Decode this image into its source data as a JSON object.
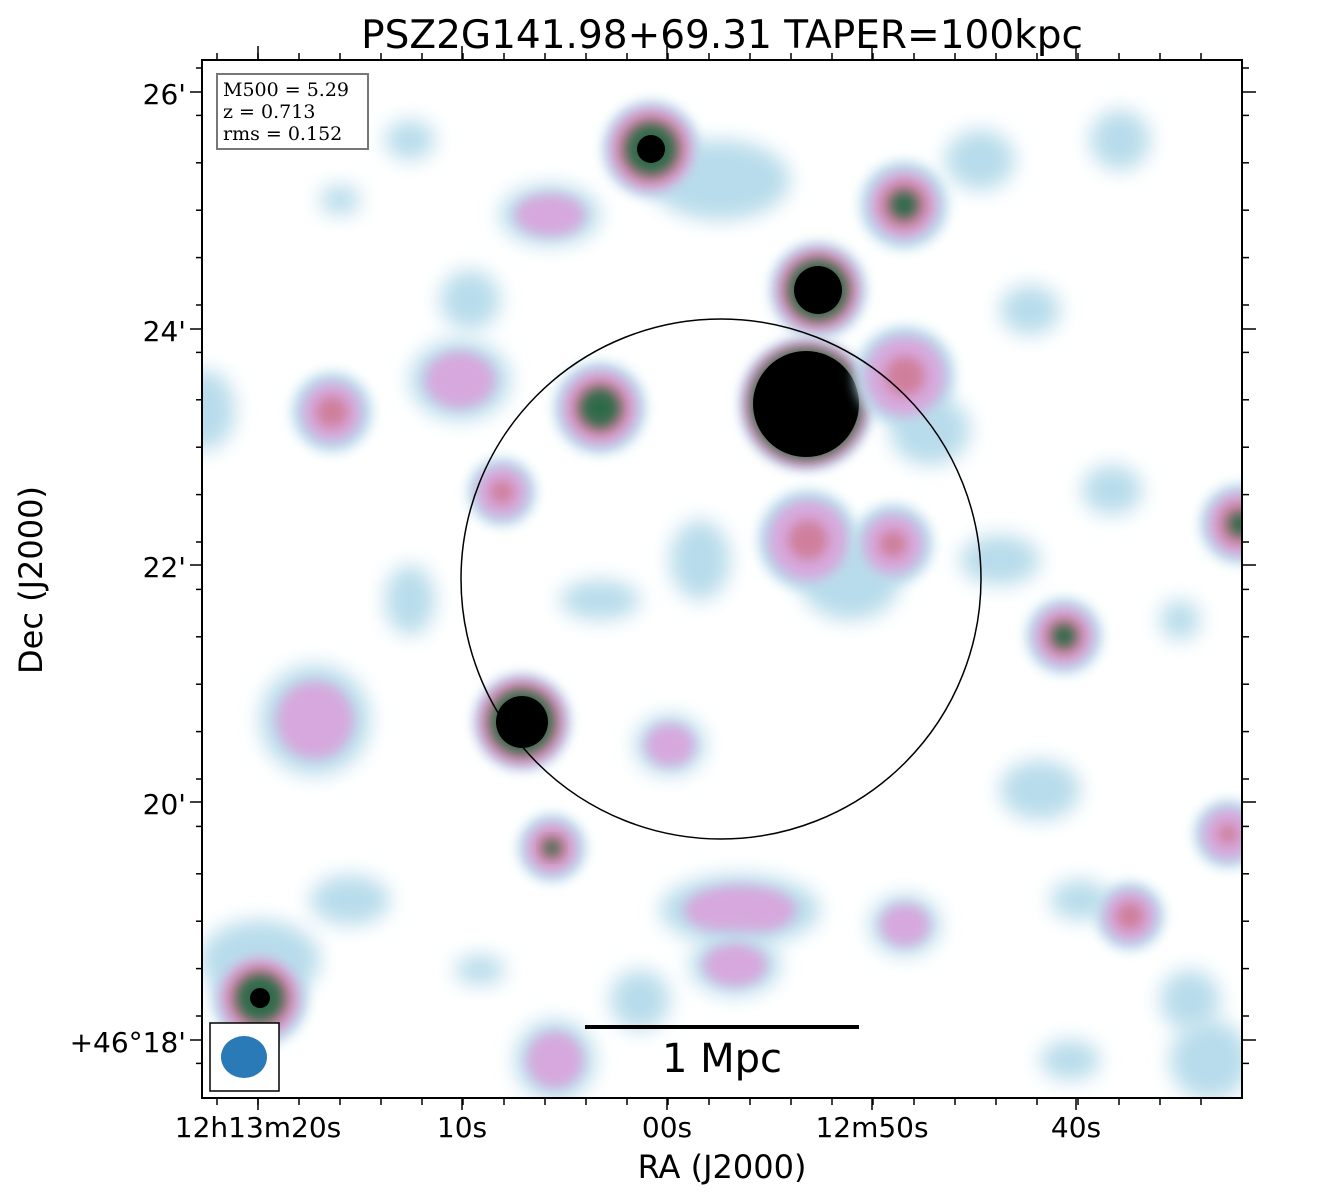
{
  "chart_data": {
    "type": "heatmap",
    "title": "PSZ2G141.98+69.31 TAPER=100kpc",
    "xlabel": "RA (J2000)",
    "ylabel": "Dec (J2000)",
    "x_ticks": [
      "12h13m20s",
      "10s",
      "00s",
      "12m50s",
      "40s"
    ],
    "y_ticks": [
      "26'",
      "24'",
      "22'",
      "20'",
      "+46°18'"
    ],
    "info_box": [
      "M500 = 5.29",
      "z = 0.713",
      "rms = 0.152"
    ],
    "scale_bar_label": "1 Mpc",
    "colormap": "cubehelix-like (white → light blue → pink → green → black)",
    "grid": false,
    "overlays": [
      "circle around cluster centre",
      "beam ellipse bottom-left",
      "scale bar bottom-centre"
    ]
  },
  "colors": {
    "faint": "#b8dceb",
    "low": "#d7a8dd",
    "mid": "#cf7f9b",
    "high": "#2e6b48",
    "peak": "#000000",
    "beam": "#2a7ab8"
  }
}
